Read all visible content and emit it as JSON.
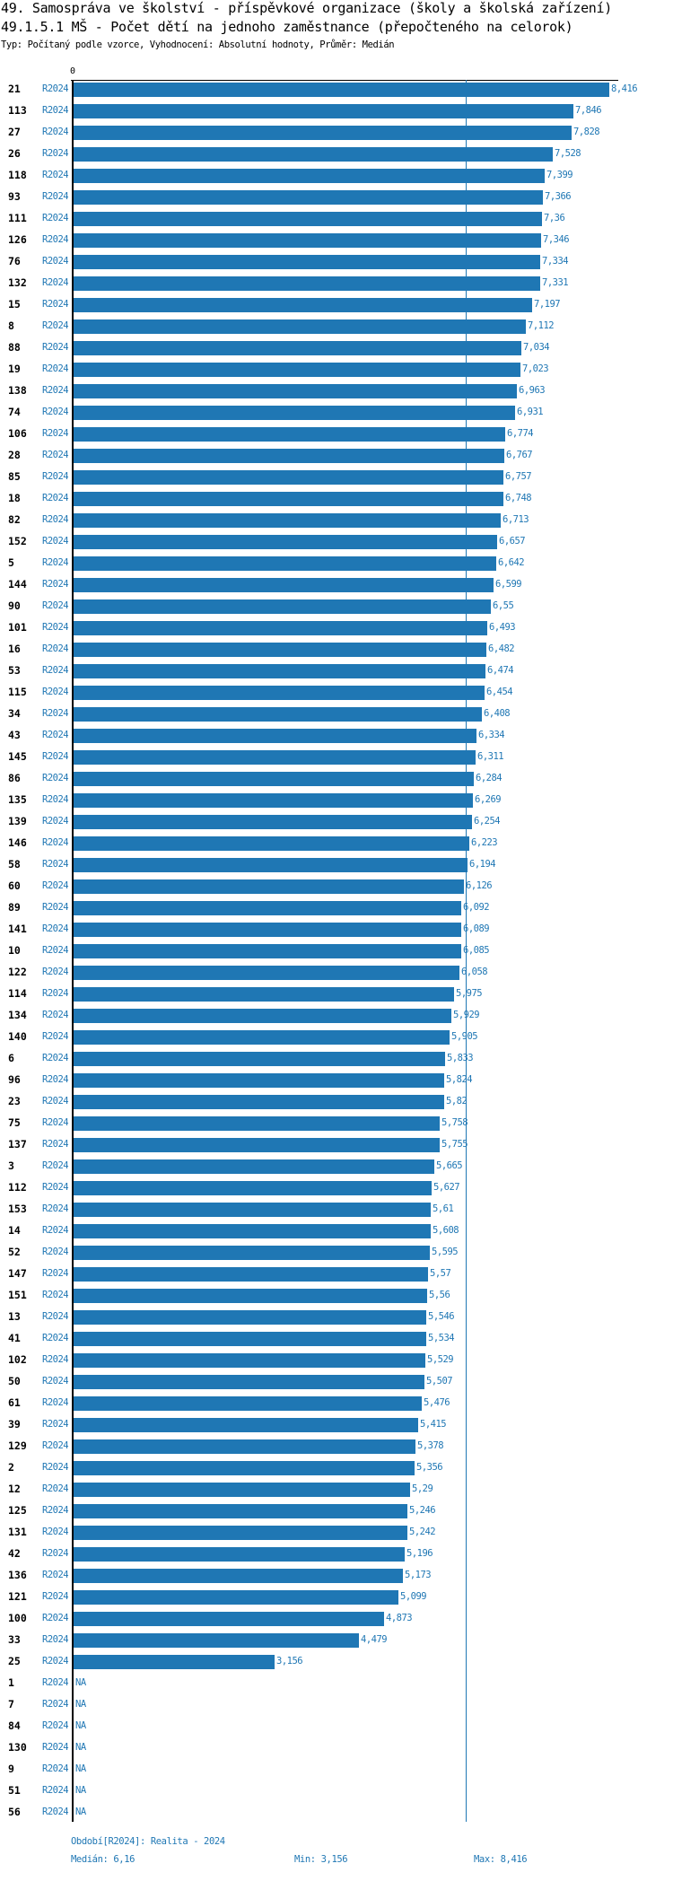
{
  "header": {
    "title": "49. Samospráva ve školství - příspěvkové organizace (školy a školská zařízení)",
    "subtitle": "49.1.5.1 MŠ - Počet dětí na jednoho zaměstnance (přepočteného na celorok)",
    "meta": "Typ: Počítaný podle vzorce, Vyhodnocení: Absolutní hodnoty, Průměr: Medián"
  },
  "chart_data": {
    "type": "bar",
    "orientation": "horizontal",
    "axis_zero_label": "0",
    "xlim": [
      0,
      8.416
    ],
    "reference_line": {
      "name": "Medián",
      "value": 6.16
    },
    "colors": {
      "bar": "#1f77b4",
      "text": "#1f77b4"
    },
    "rows": [
      {
        "id": "21",
        "period": "R2024",
        "label": "8,416",
        "value": 8.416
      },
      {
        "id": "113",
        "period": "R2024",
        "label": "7,846",
        "value": 7.846
      },
      {
        "id": "27",
        "period": "R2024",
        "label": "7,828",
        "value": 7.828
      },
      {
        "id": "26",
        "period": "R2024",
        "label": "7,528",
        "value": 7.528
      },
      {
        "id": "118",
        "period": "R2024",
        "label": "7,399",
        "value": 7.399
      },
      {
        "id": "93",
        "period": "R2024",
        "label": "7,366",
        "value": 7.366
      },
      {
        "id": "111",
        "period": "R2024",
        "label": "7,36",
        "value": 7.36
      },
      {
        "id": "126",
        "period": "R2024",
        "label": "7,346",
        "value": 7.346
      },
      {
        "id": "76",
        "period": "R2024",
        "label": "7,334",
        "value": 7.334
      },
      {
        "id": "132",
        "period": "R2024",
        "label": "7,331",
        "value": 7.331
      },
      {
        "id": "15",
        "period": "R2024",
        "label": "7,197",
        "value": 7.197
      },
      {
        "id": "8",
        "period": "R2024",
        "label": "7,112",
        "value": 7.112
      },
      {
        "id": "88",
        "period": "R2024",
        "label": "7,034",
        "value": 7.034
      },
      {
        "id": "19",
        "period": "R2024",
        "label": "7,023",
        "value": 7.023
      },
      {
        "id": "138",
        "period": "R2024",
        "label": "6,963",
        "value": 6.963
      },
      {
        "id": "74",
        "period": "R2024",
        "label": "6,931",
        "value": 6.931
      },
      {
        "id": "106",
        "period": "R2024",
        "label": "6,774",
        "value": 6.774
      },
      {
        "id": "28",
        "period": "R2024",
        "label": "6,767",
        "value": 6.767
      },
      {
        "id": "85",
        "period": "R2024",
        "label": "6,757",
        "value": 6.757
      },
      {
        "id": "18",
        "period": "R2024",
        "label": "6,748",
        "value": 6.748
      },
      {
        "id": "82",
        "period": "R2024",
        "label": "6,713",
        "value": 6.713
      },
      {
        "id": "152",
        "period": "R2024",
        "label": "6,657",
        "value": 6.657
      },
      {
        "id": "5",
        "period": "R2024",
        "label": "6,642",
        "value": 6.642
      },
      {
        "id": "144",
        "period": "R2024",
        "label": "6,599",
        "value": 6.599
      },
      {
        "id": "90",
        "period": "R2024",
        "label": "6,55",
        "value": 6.55
      },
      {
        "id": "101",
        "period": "R2024",
        "label": "6,493",
        "value": 6.493
      },
      {
        "id": "16",
        "period": "R2024",
        "label": "6,482",
        "value": 6.482
      },
      {
        "id": "53",
        "period": "R2024",
        "label": "6,474",
        "value": 6.474
      },
      {
        "id": "115",
        "period": "R2024",
        "label": "6,454",
        "value": 6.454
      },
      {
        "id": "34",
        "period": "R2024",
        "label": "6,408",
        "value": 6.408
      },
      {
        "id": "43",
        "period": "R2024",
        "label": "6,334",
        "value": 6.334
      },
      {
        "id": "145",
        "period": "R2024",
        "label": "6,311",
        "value": 6.311
      },
      {
        "id": "86",
        "period": "R2024",
        "label": "6,284",
        "value": 6.284
      },
      {
        "id": "135",
        "period": "R2024",
        "label": "6,269",
        "value": 6.269
      },
      {
        "id": "139",
        "period": "R2024",
        "label": "6,254",
        "value": 6.254
      },
      {
        "id": "146",
        "period": "R2024",
        "label": "6,223",
        "value": 6.223
      },
      {
        "id": "58",
        "period": "R2024",
        "label": "6,194",
        "value": 6.194
      },
      {
        "id": "60",
        "period": "R2024",
        "label": "6,126",
        "value": 6.126
      },
      {
        "id": "89",
        "period": "R2024",
        "label": "6,092",
        "value": 6.092
      },
      {
        "id": "141",
        "period": "R2024",
        "label": "6,089",
        "value": 6.089
      },
      {
        "id": "10",
        "period": "R2024",
        "label": "6,085",
        "value": 6.085
      },
      {
        "id": "122",
        "period": "R2024",
        "label": "6,058",
        "value": 6.058
      },
      {
        "id": "114",
        "period": "R2024",
        "label": "5,975",
        "value": 5.975
      },
      {
        "id": "134",
        "period": "R2024",
        "label": "5,929",
        "value": 5.929
      },
      {
        "id": "140",
        "period": "R2024",
        "label": "5,905",
        "value": 5.905
      },
      {
        "id": "6",
        "period": "R2024",
        "label": "5,833",
        "value": 5.833
      },
      {
        "id": "96",
        "period": "R2024",
        "label": "5,824",
        "value": 5.824
      },
      {
        "id": "23",
        "period": "R2024",
        "label": "5,82",
        "value": 5.82
      },
      {
        "id": "75",
        "period": "R2024",
        "label": "5,758",
        "value": 5.758
      },
      {
        "id": "137",
        "period": "R2024",
        "label": "5,755",
        "value": 5.755
      },
      {
        "id": "3",
        "period": "R2024",
        "label": "5,665",
        "value": 5.665
      },
      {
        "id": "112",
        "period": "R2024",
        "label": "5,627",
        "value": 5.627
      },
      {
        "id": "153",
        "period": "R2024",
        "label": "5,61",
        "value": 5.61
      },
      {
        "id": "14",
        "period": "R2024",
        "label": "5,608",
        "value": 5.608
      },
      {
        "id": "52",
        "period": "R2024",
        "label": "5,595",
        "value": 5.595
      },
      {
        "id": "147",
        "period": "R2024",
        "label": "5,57",
        "value": 5.57
      },
      {
        "id": "151",
        "period": "R2024",
        "label": "5,56",
        "value": 5.56
      },
      {
        "id": "13",
        "period": "R2024",
        "label": "5,546",
        "value": 5.546
      },
      {
        "id": "41",
        "period": "R2024",
        "label": "5,534",
        "value": 5.534
      },
      {
        "id": "102",
        "period": "R2024",
        "label": "5,529",
        "value": 5.529
      },
      {
        "id": "50",
        "period": "R2024",
        "label": "5,507",
        "value": 5.507
      },
      {
        "id": "61",
        "period": "R2024",
        "label": "5,476",
        "value": 5.476
      },
      {
        "id": "39",
        "period": "R2024",
        "label": "5,415",
        "value": 5.415
      },
      {
        "id": "129",
        "period": "R2024",
        "label": "5,378",
        "value": 5.378
      },
      {
        "id": "2",
        "period": "R2024",
        "label": "5,356",
        "value": 5.356
      },
      {
        "id": "12",
        "period": "R2024",
        "label": "5,29",
        "value": 5.29
      },
      {
        "id": "125",
        "period": "R2024",
        "label": "5,246",
        "value": 5.246
      },
      {
        "id": "131",
        "period": "R2024",
        "label": "5,242",
        "value": 5.242
      },
      {
        "id": "42",
        "period": "R2024",
        "label": "5,196",
        "value": 5.196
      },
      {
        "id": "136",
        "period": "R2024",
        "label": "5,173",
        "value": 5.173
      },
      {
        "id": "121",
        "period": "R2024",
        "label": "5,099",
        "value": 5.099
      },
      {
        "id": "100",
        "period": "R2024",
        "label": "4,873",
        "value": 4.873
      },
      {
        "id": "33",
        "period": "R2024",
        "label": "4,479",
        "value": 4.479
      },
      {
        "id": "25",
        "period": "R2024",
        "label": "3,156",
        "value": 3.156
      },
      {
        "id": "1",
        "period": "R2024",
        "label": "NA",
        "value": null
      },
      {
        "id": "7",
        "period": "R2024",
        "label": "NA",
        "value": null
      },
      {
        "id": "84",
        "period": "R2024",
        "label": "NA",
        "value": null
      },
      {
        "id": "130",
        "period": "R2024",
        "label": "NA",
        "value": null
      },
      {
        "id": "9",
        "period": "R2024",
        "label": "NA",
        "value": null
      },
      {
        "id": "51",
        "period": "R2024",
        "label": "NA",
        "value": null
      },
      {
        "id": "56",
        "period": "R2024",
        "label": "NA",
        "value": null
      }
    ]
  },
  "footer": {
    "period": "Období[R2024]: Realita - 2024",
    "median": "Medián: 6,16",
    "min": "Min: 3,156",
    "max": "Max: 8,416"
  }
}
